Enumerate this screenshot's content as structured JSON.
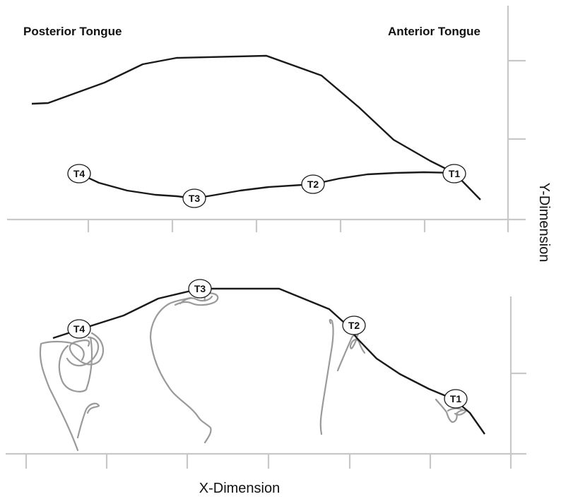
{
  "labels": {
    "posterior": "Posterior Tongue",
    "anterior": "Anterior Tongue",
    "x_axis": "X-Dimension",
    "y_axis": "Y-Dimension"
  },
  "top_panel": {
    "sensors": [
      {
        "id": "T4",
        "label": "T4"
      },
      {
        "id": "T3",
        "label": "T3"
      },
      {
        "id": "T2",
        "label": "T2"
      },
      {
        "id": "T1",
        "label": "T1"
      }
    ]
  },
  "bottom_panel": {
    "sensors": [
      {
        "id": "T4",
        "label": "T4"
      },
      {
        "id": "T3",
        "label": "T3"
      },
      {
        "id": "T2",
        "label": "T2"
      },
      {
        "id": "T1",
        "label": "T1"
      }
    ]
  },
  "colors": {
    "tongue_line": "#1a1a1a",
    "trace_line": "#9a9a9a",
    "axis_line": "#c8c8c8"
  }
}
